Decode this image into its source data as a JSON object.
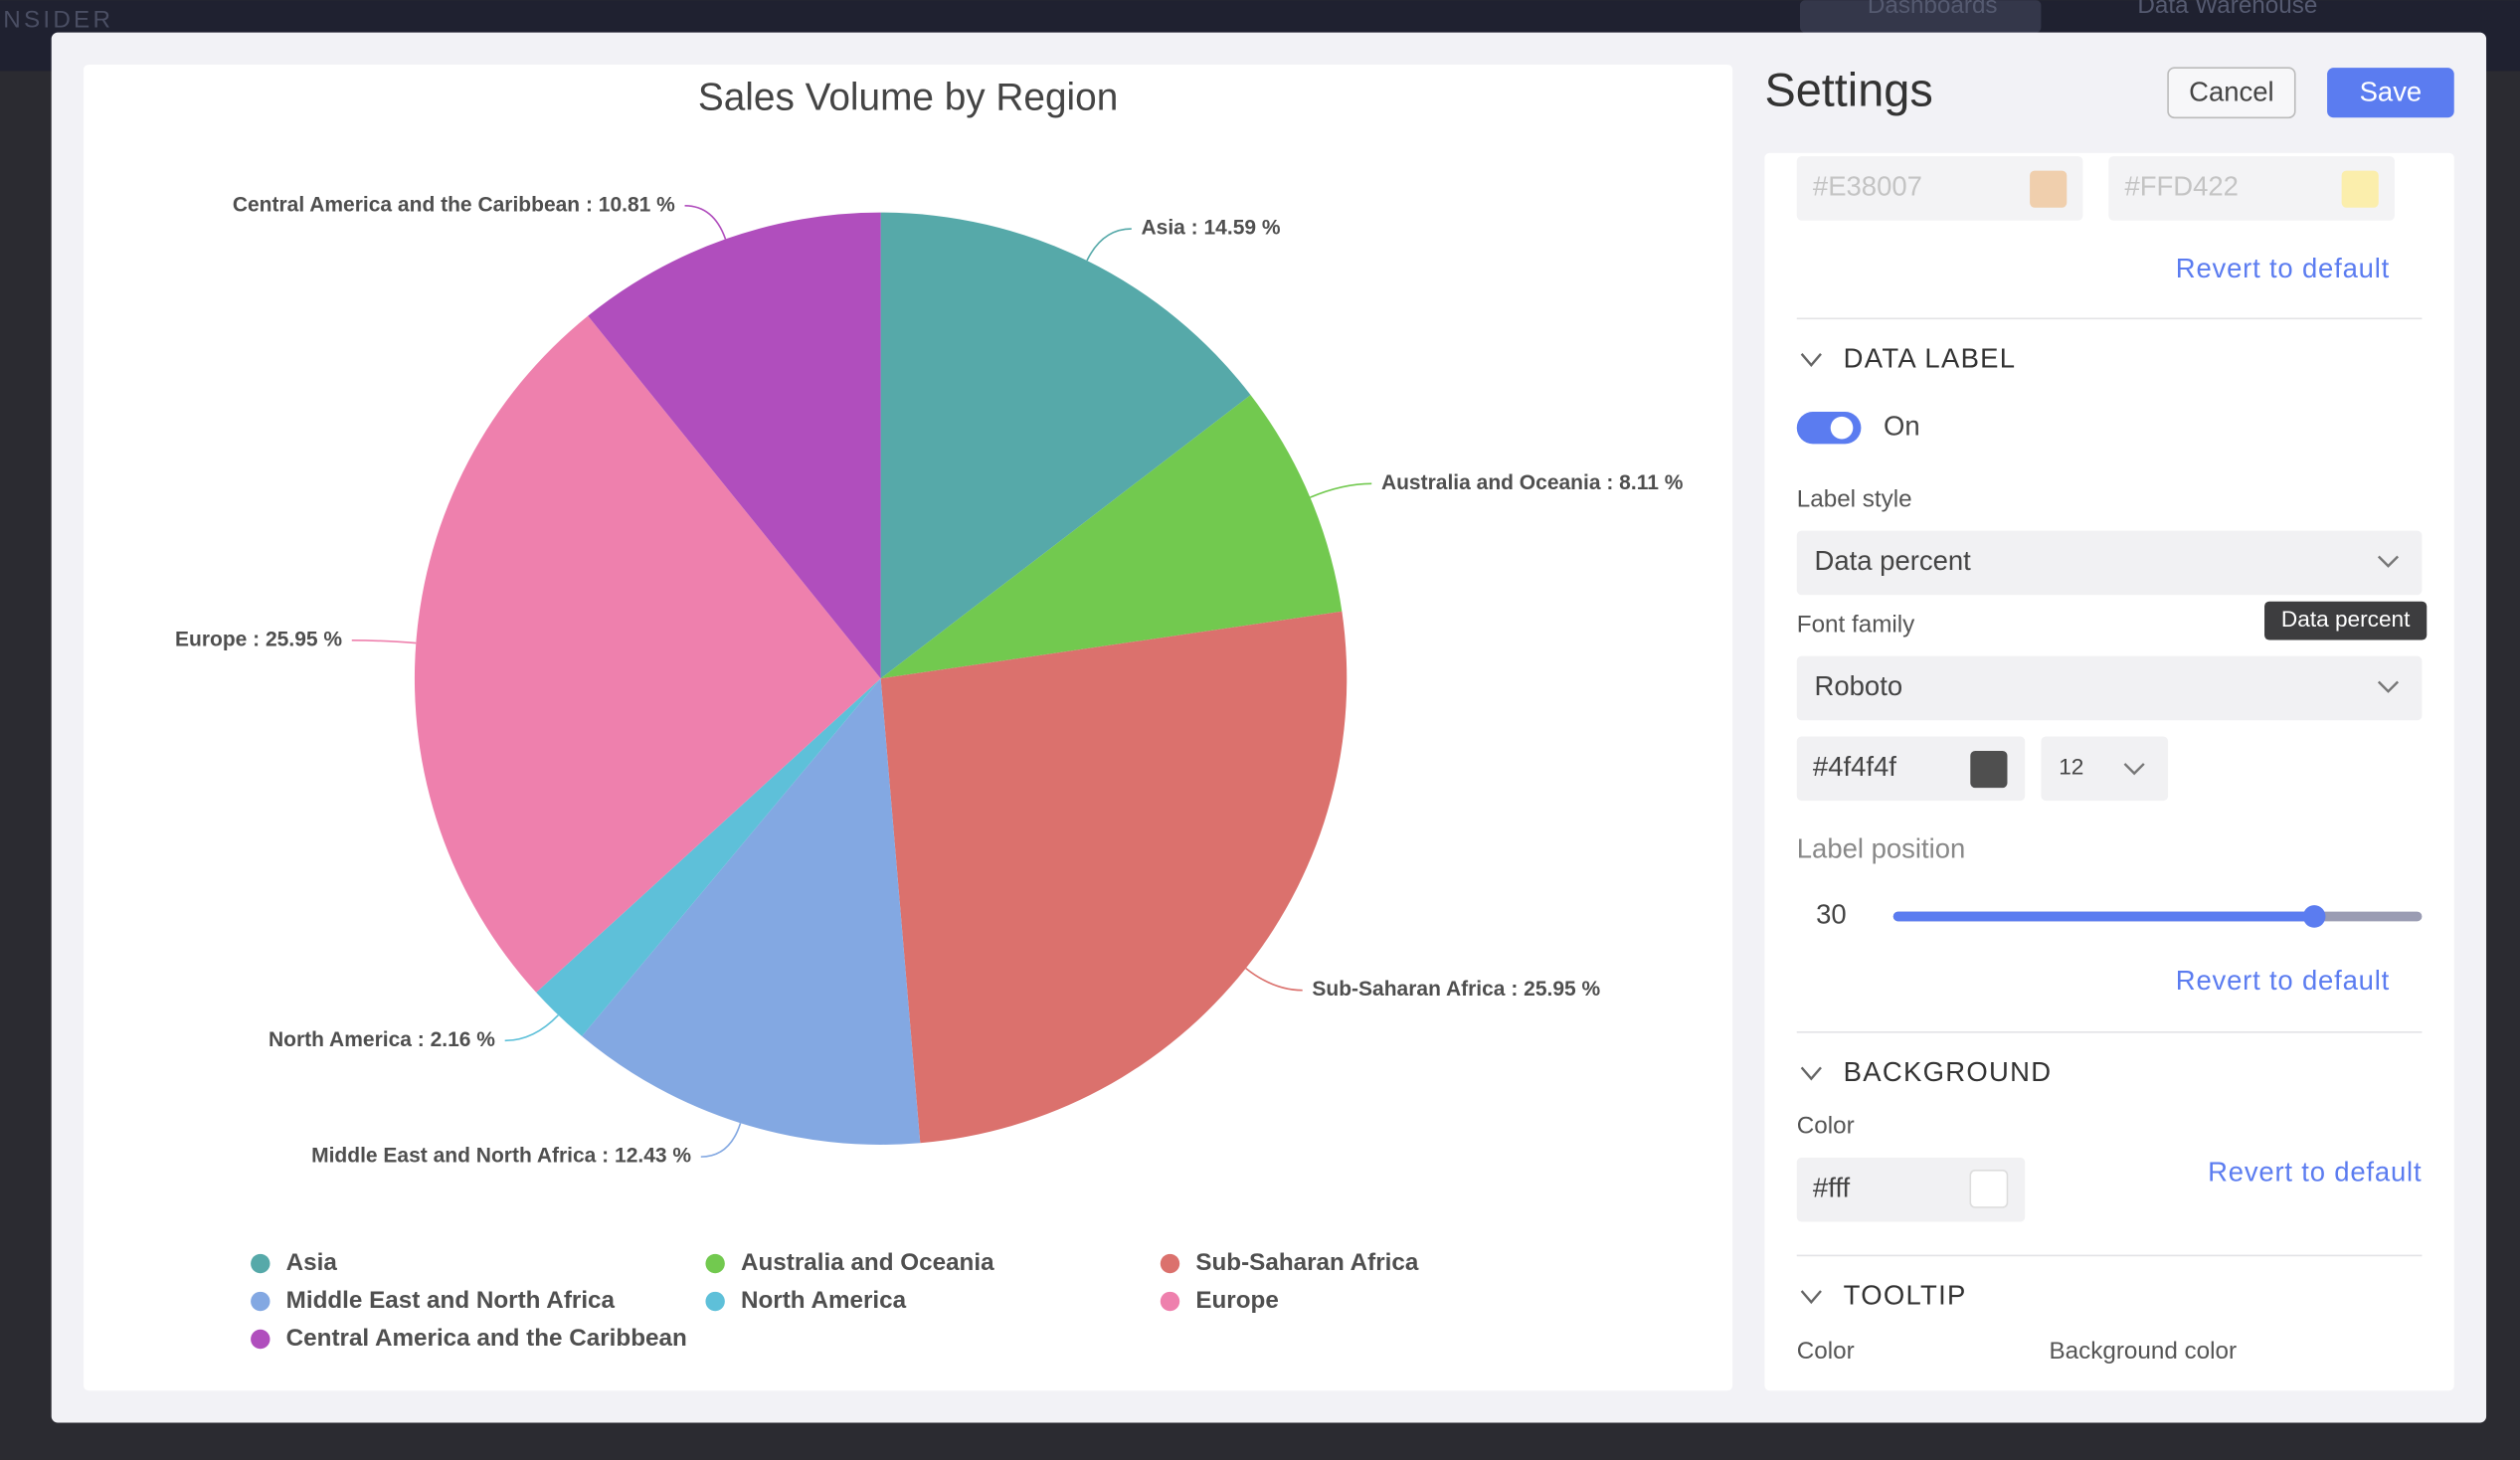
{
  "app": {
    "brand": "NSIDER",
    "nav": [
      "Dashboards",
      "Data Warehouse"
    ]
  },
  "chart_data": {
    "type": "pie",
    "title": "Sales Volume by Region",
    "categories": [
      "Asia",
      "Australia and Oceania",
      "Sub-Saharan Africa",
      "Middle East and North Africa",
      "North America",
      "Europe",
      "Central America and the Caribbean"
    ],
    "values": [
      14.59,
      8.11,
      25.95,
      12.43,
      2.16,
      25.95,
      10.81
    ],
    "value_labels": [
      "Asia : 14.59 %",
      "Australia and Oceania : 8.11 %",
      "Sub-Saharan Africa : 25.95 %",
      "Middle East and North Africa : 12.43 %",
      "North America : 2.16 %",
      "Europe : 25.95 %",
      "Central America and the Caribbean : 10.81 %"
    ],
    "colors": [
      "#56a9a9",
      "#72c94f",
      "#db716d",
      "#83a8e2",
      "#5ec0d9",
      "#ee80ad",
      "#b04ebd"
    ]
  },
  "settings": {
    "title": "Settings",
    "cancel": "Cancel",
    "save": "Save",
    "colors_top": [
      "#E38007",
      "#FFD422"
    ],
    "revert": "Revert to default",
    "data_label": {
      "heading": "DATA LABEL",
      "toggle": "On",
      "label_style": "Label style",
      "label_style_value": "Data percent",
      "tooltip": "Data percent",
      "font_family": "Font family",
      "font_family_value": "Roboto",
      "font_color": "#4f4f4f",
      "font_size": "12",
      "label_position": "Label position",
      "label_position_value": "30",
      "revert": "Revert to default"
    },
    "background": {
      "heading": "BACKGROUND",
      "color_label": "Color",
      "color_value": "#fff",
      "revert": "Revert to default"
    },
    "tooltip": {
      "heading": "TOOLTIP",
      "color_label": "Color",
      "background_label": "Background color"
    }
  }
}
